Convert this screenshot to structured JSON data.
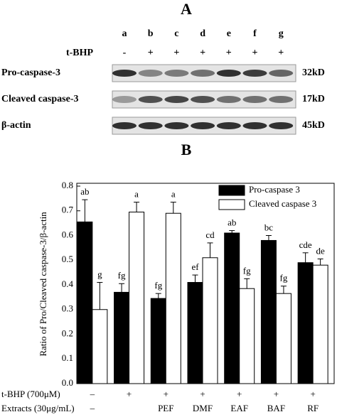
{
  "panel_a": {
    "label": "A",
    "lanes": [
      "a",
      "b",
      "c",
      "d",
      "e",
      "f",
      "g"
    ],
    "treatment_label": "t-BHP",
    "treatment": [
      "-",
      "+",
      "+",
      "+",
      "+",
      "+",
      "+"
    ],
    "rows": [
      {
        "name": "Pro-caspase-3",
        "size": "32kD"
      },
      {
        "name": "Cleaved caspase-3",
        "size": "17kD"
      },
      {
        "name": "β-actin",
        "size": "45kD"
      }
    ]
  },
  "chart_data": {
    "type": "bar",
    "panel_label": "B",
    "ylabel": "Ratio of Pro/Cleaved caspase-3/β-actin",
    "treatment_label": "t-BHP (700μM)",
    "treatment": [
      "–",
      "+",
      "+",
      "+",
      "+",
      "+",
      "+"
    ],
    "categories_label": "Extracts (30μg/mL)",
    "categories": [
      "–",
      null,
      "PEF",
      "DMF",
      "EAF",
      "BAF",
      "RF"
    ],
    "series": [
      {
        "name": "Pro-caspase 3",
        "color": "#000000",
        "values": [
          0.655,
          0.37,
          0.345,
          0.41,
          0.61,
          0.58,
          0.49
        ],
        "errors": [
          0.09,
          0.035,
          0.02,
          0.03,
          0.01,
          0.02,
          0.04
        ],
        "letters": [
          "ab",
          "fg",
          "fg",
          "ef",
          "ab",
          "bc",
          "cde"
        ]
      },
      {
        "name": "Cleaved caspase 3",
        "color": "#ffffff",
        "values": [
          0.3,
          0.695,
          0.69,
          0.51,
          0.385,
          0.365,
          0.48
        ],
        "errors": [
          0.11,
          0.04,
          0.045,
          0.06,
          0.04,
          0.03,
          0.025
        ],
        "letters": [
          "g",
          "a",
          "a",
          "cd",
          "fg",
          "fg",
          "de"
        ]
      }
    ],
    "ylim": [
      0,
      0.8
    ],
    "yticks": [
      {
        "value": 0,
        "label": "0.0"
      },
      0.1,
      0.2,
      0.3,
      0.4,
      0.5,
      0.6,
      0.7,
      0.8
    ],
    "legend": "upper right"
  }
}
